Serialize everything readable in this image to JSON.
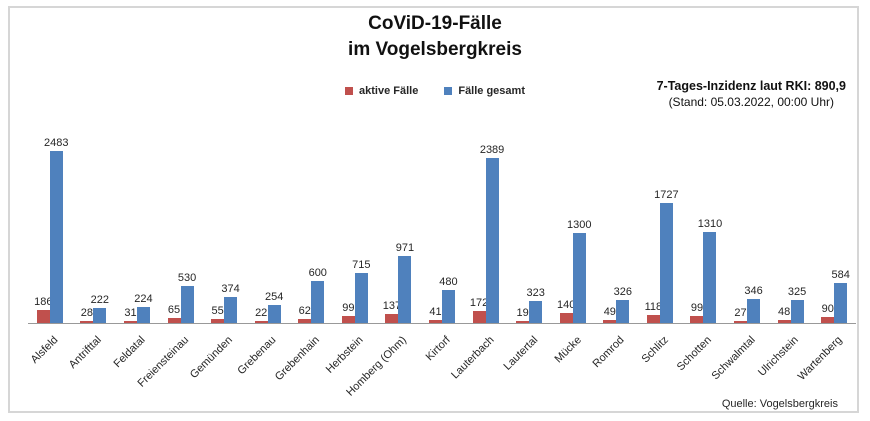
{
  "title": {
    "line1": "CoViD-19-Fälle",
    "line2": "im Vogelsbergkreis"
  },
  "legend": [
    {
      "label": "aktive Fälle",
      "color": "#c0504d"
    },
    {
      "label": "Fälle gesamt",
      "color": "#4f81bd"
    }
  ],
  "incidence": {
    "line1": "7-Tages-Inzidenz laut RKI: 890,9",
    "line2": "(Stand: 05.03.2022, 00:00 Uhr)"
  },
  "source": "Quelle: Vogelsbergkreis",
  "chart_data": {
    "type": "bar",
    "title": "CoViD-19-Fälle im Vogelsbergkreis",
    "categories": [
      "Alsfeld",
      "Antrifttal",
      "Feldatal",
      "Freiensteinau",
      "Gemünden",
      "Grebenau",
      "Grebenhain",
      "Herbstein",
      "Homberg (Ohm)",
      "Kirtorf",
      "Lauterbach",
      "Lautertal",
      "Mücke",
      "Romrod",
      "Schlitz",
      "Schotten",
      "Schwalmtal",
      "Ulrichstein",
      "Wartenberg"
    ],
    "series": [
      {
        "name": "aktive Fälle",
        "color": "#c0504d",
        "values": [
          186,
          28,
          31,
          65,
          55,
          22,
          62,
          99,
          137,
          41,
          172,
          19,
          140,
          49,
          118,
          99,
          27,
          48,
          90
        ]
      },
      {
        "name": "Fälle gesamt",
        "color": "#4f81bd",
        "values": [
          2483,
          222,
          224,
          530,
          374,
          254,
          600,
          715,
          971,
          480,
          2389,
          323,
          1300,
          326,
          1727,
          1310,
          346,
          325,
          584
        ]
      }
    ],
    "xlabel": "",
    "ylabel": "",
    "ylim": [
      0,
      2483
    ],
    "grid": false,
    "value_labels": true,
    "legend_position": "top",
    "x_tick_rotation": 45
  }
}
